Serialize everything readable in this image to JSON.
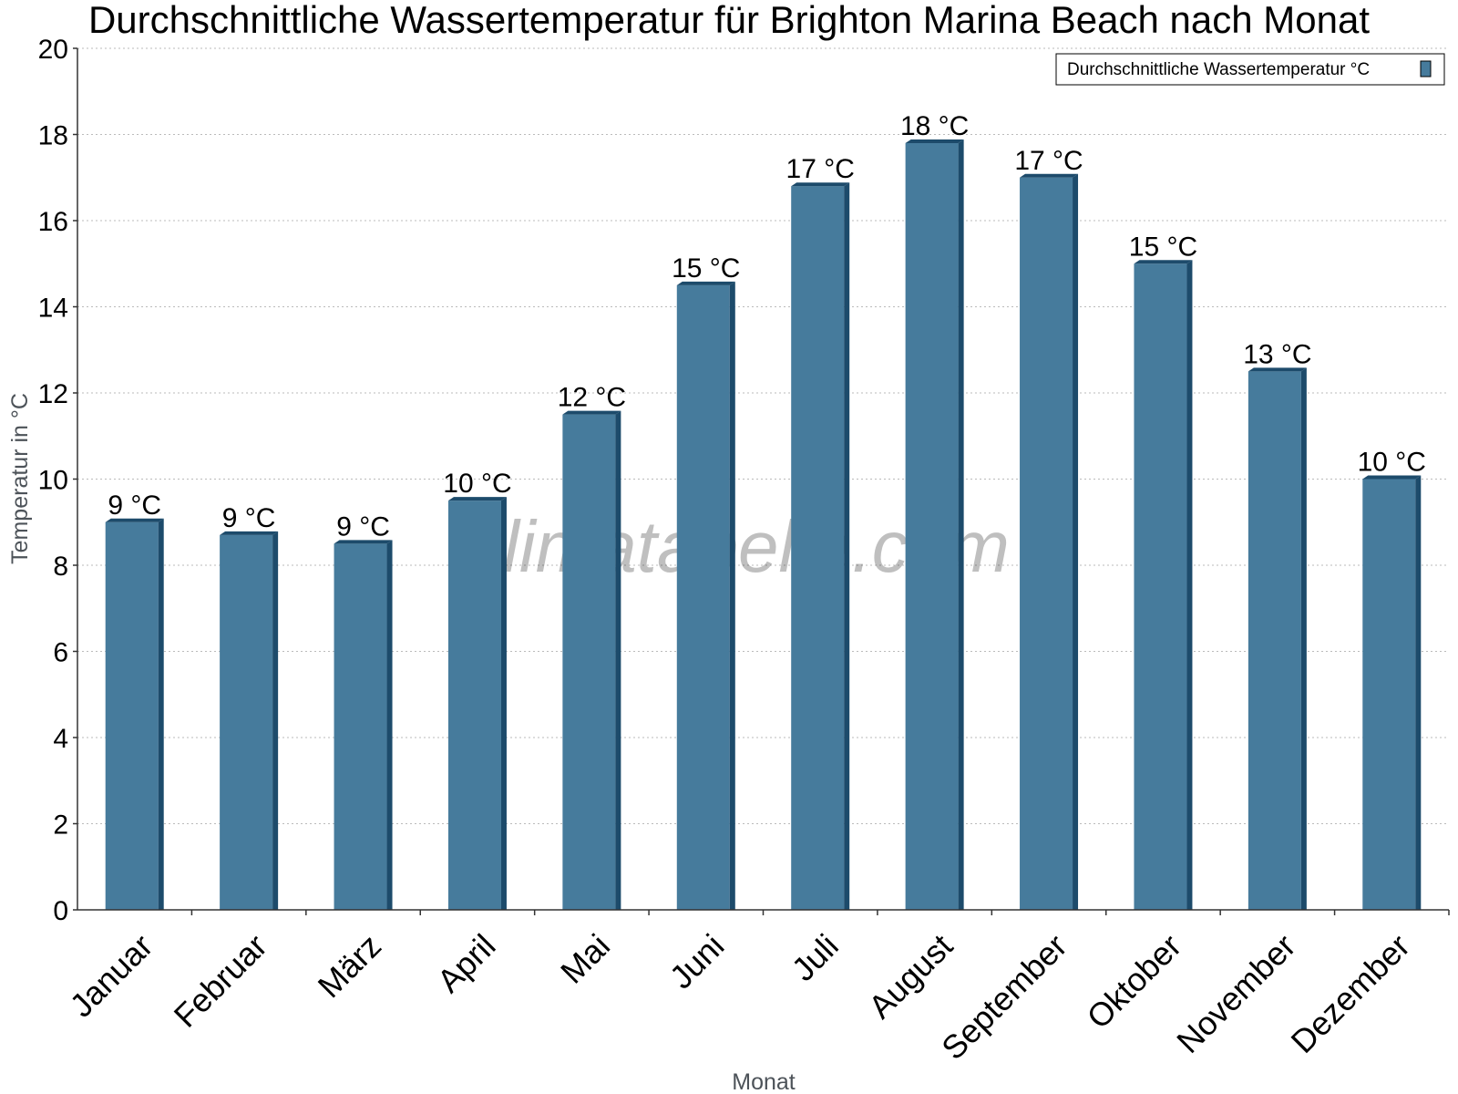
{
  "chart_data": {
    "type": "bar",
    "title": "Durchschnittliche Wassertemperatur für Brighton Marina Beach nach Monat",
    "xlabel": "Monat",
    "ylabel": "Temperatur in °C",
    "categories": [
      "Januar",
      "Februar",
      "März",
      "April",
      "Mai",
      "Juni",
      "Juli",
      "August",
      "September",
      "Oktober",
      "November",
      "Dezember"
    ],
    "series": [
      {
        "name": "Durchschnittliche Wassertemperatur °C",
        "values": [
          9.0,
          8.7,
          8.5,
          9.5,
          11.5,
          14.5,
          16.8,
          17.8,
          17.0,
          15.0,
          12.5,
          10.0
        ],
        "labels": [
          "9 °C",
          "9 °C",
          "9 °C",
          "10 °C",
          "12 °C",
          "15 °C",
          "17 °C",
          "18 °C",
          "17 °C",
          "15 °C",
          "13 °C",
          "10 °C"
        ]
      }
    ],
    "ylim": [
      0,
      20
    ],
    "yticks": [
      "0",
      "2",
      "4",
      "6",
      "8",
      "10",
      "12",
      "14",
      "16",
      "18",
      "20"
    ],
    "grid": true,
    "legend_position": "top-right",
    "bar_color": "#467b9c",
    "bar_shade_color": "#1d4b6b"
  },
  "watermark": "klimatabelle.com"
}
